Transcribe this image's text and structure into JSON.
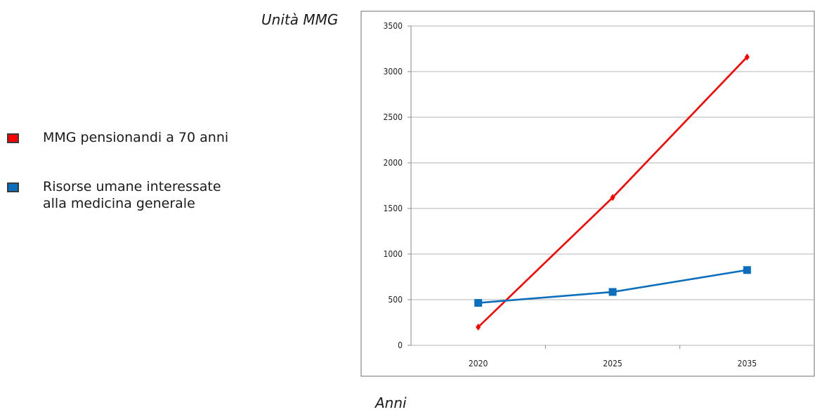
{
  "chart_data": {
    "type": "line",
    "categories": [
      "2020",
      "2025",
      "2035"
    ],
    "ylabel": "Unità MMG",
    "xlabel": "Anni",
    "ylim": [
      0,
      3500
    ],
    "yticks": [
      0,
      500,
      1000,
      1500,
      2000,
      2500,
      3000,
      3500
    ],
    "grid": true,
    "legend_position": "left",
    "series": [
      {
        "name_lines": [
          "MMG pensionandi a 70 anni"
        ],
        "values": [
          200,
          1620,
          3160
        ],
        "color": "#ff0000",
        "marker": "diamond"
      },
      {
        "name_lines": [
          "Risorse umane interessate",
          "alla medicina generale"
        ],
        "values": [
          465,
          585,
          825
        ],
        "color": "#0b6fbd",
        "marker": "square"
      }
    ]
  }
}
